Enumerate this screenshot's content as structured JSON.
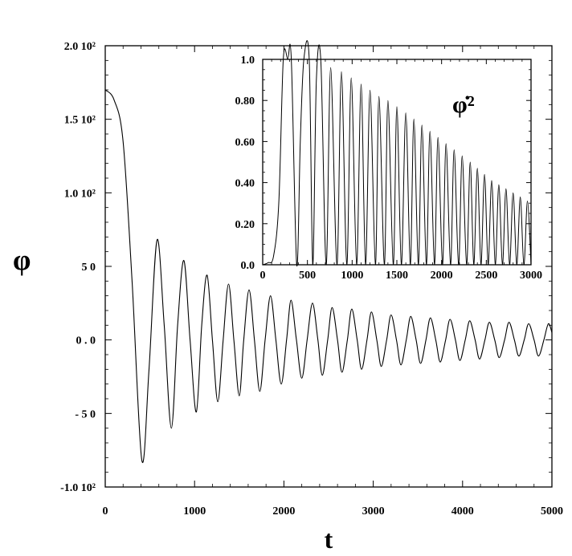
{
  "chart_data": [
    {
      "type": "line",
      "title": "",
      "xlabel": "t",
      "ylabel": "φ",
      "xlim": [
        0,
        5000
      ],
      "ylim": [
        -100,
        200
      ],
      "grid": false,
      "x_ticks": [
        {
          "value": 0,
          "label": "0"
        },
        {
          "value": 1000,
          "label": "1000"
        },
        {
          "value": 2000,
          "label": "2000"
        },
        {
          "value": 3000,
          "label": "3000"
        },
        {
          "value": 4000,
          "label": "4000"
        },
        {
          "value": 5000,
          "label": "5000"
        }
      ],
      "y_ticks": [
        {
          "value": 200,
          "label": "2.0  10²"
        },
        {
          "value": 150,
          "label": "1.5  10²"
        },
        {
          "value": 100,
          "label": "1.0  10²"
        },
        {
          "value": 50,
          "label": "5 0"
        },
        {
          "value": 0,
          "label": "0 . 0"
        },
        {
          "value": -50,
          "label": "- 5 0"
        },
        {
          "value": -100,
          "label": "-1.0  10²"
        }
      ],
      "series": [
        {
          "color": "#000000",
          "points": [
            [
              0,
              170
            ],
            [
              100,
              163
            ],
            [
              200,
              135
            ],
            [
              300,
              40
            ],
            [
              410,
              -82
            ],
            [
              490,
              -20
            ],
            [
              580,
              68
            ],
            [
              660,
              10
            ],
            [
              740,
              -60
            ],
            [
              810,
              10
            ],
            [
              880,
              54
            ],
            [
              950,
              0
            ],
            [
              1020,
              -49
            ],
            [
              1080,
              10
            ],
            [
              1140,
              44
            ],
            [
              1200,
              0
            ],
            [
              1260,
              -42
            ],
            [
              1320,
              0
            ],
            [
              1380,
              38
            ],
            [
              1440,
              0
            ],
            [
              1500,
              -38
            ],
            [
              1550,
              0
            ],
            [
              1610,
              34
            ],
            [
              1670,
              0
            ],
            [
              1730,
              -35
            ],
            [
              1790,
              0
            ],
            [
              1850,
              30
            ],
            [
              1910,
              0
            ],
            [
              1970,
              -30
            ],
            [
              2030,
              0
            ],
            [
              2080,
              27
            ],
            [
              2140,
              0
            ],
            [
              2200,
              -26
            ],
            [
              2260,
              0
            ],
            [
              2320,
              25
            ],
            [
              2380,
              0
            ],
            [
              2430,
              -24
            ],
            [
              2490,
              0
            ],
            [
              2540,
              22
            ],
            [
              2600,
              0
            ],
            [
              2650,
              -22
            ],
            [
              2710,
              0
            ],
            [
              2760,
              21
            ],
            [
              2820,
              0
            ],
            [
              2870,
              -20
            ],
            [
              2930,
              0
            ],
            [
              2980,
              19
            ],
            [
              3040,
              0
            ],
            [
              3090,
              -18
            ],
            [
              3150,
              0
            ],
            [
              3200,
              17
            ],
            [
              3260,
              0
            ],
            [
              3310,
              -17
            ],
            [
              3370,
              0
            ],
            [
              3420,
              16
            ],
            [
              3480,
              0
            ],
            [
              3530,
              -16
            ],
            [
              3590,
              0
            ],
            [
              3640,
              15
            ],
            [
              3700,
              0
            ],
            [
              3750,
              -15
            ],
            [
              3810,
              0
            ],
            [
              3860,
              14
            ],
            [
              3920,
              0
            ],
            [
              3970,
              -14
            ],
            [
              4030,
              0
            ],
            [
              4080,
              13
            ],
            [
              4140,
              0
            ],
            [
              4190,
              -13
            ],
            [
              4250,
              0
            ],
            [
              4300,
              12
            ],
            [
              4360,
              0
            ],
            [
              4410,
              -12
            ],
            [
              4470,
              0
            ],
            [
              4520,
              12
            ],
            [
              4580,
              0
            ],
            [
              4630,
              -11
            ],
            [
              4690,
              0
            ],
            [
              4740,
              11
            ],
            [
              4800,
              0
            ],
            [
              4850,
              -11
            ],
            [
              4910,
              0
            ],
            [
              4960,
              11
            ],
            [
              5000,
              5
            ]
          ]
        }
      ]
    },
    {
      "type": "line",
      "title": "",
      "annotation": "φ̇²",
      "xlabel": "",
      "ylabel": "",
      "xlim": [
        0,
        3000
      ],
      "ylim": [
        0,
        1.0
      ],
      "grid": false,
      "x_ticks": [
        {
          "value": 0,
          "label": "0"
        },
        {
          "value": 500,
          "label": "500"
        },
        {
          "value": 1000,
          "label": "1000"
        },
        {
          "value": 1500,
          "label": "1500"
        },
        {
          "value": 2000,
          "label": "2000"
        },
        {
          "value": 2500,
          "label": "2500"
        },
        {
          "value": 3000,
          "label": "3000"
        }
      ],
      "y_ticks": [
        {
          "value": 1.0,
          "label": "1.0"
        },
        {
          "value": 0.8,
          "label": "0.80"
        },
        {
          "value": 0.6,
          "label": "0.60"
        },
        {
          "value": 0.4,
          "label": "0.40"
        },
        {
          "value": 0.2,
          "label": "0.20"
        },
        {
          "value": 0.0,
          "label": "0.0"
        }
      ],
      "series": [
        {
          "color": "#000000",
          "points": [
            [
              0,
              0.0
            ],
            [
              60,
              0.01
            ],
            [
              120,
              0.04
            ],
            [
              180,
              0.3
            ],
            [
              230,
              1.0
            ],
            [
              280,
              1.0
            ],
            [
              320,
              1.0
            ],
            [
              380,
              0.0
            ],
            [
              420,
              0.6
            ],
            [
              460,
              1.0
            ],
            [
              520,
              1.0
            ],
            [
              560,
              0.0
            ],
            [
              600,
              0.9
            ],
            [
              650,
              0.99
            ],
            [
              710,
              0.0
            ],
            [
              760,
              0.96
            ],
            [
              830,
              0.0
            ],
            [
              880,
              0.94
            ],
            [
              940,
              0.0
            ],
            [
              990,
              0.91
            ],
            [
              1050,
              0.0
            ],
            [
              1100,
              0.88
            ],
            [
              1150,
              0.0
            ],
            [
              1200,
              0.85
            ],
            [
              1260,
              0.0
            ],
            [
              1300,
              0.82
            ],
            [
              1360,
              0.0
            ],
            [
              1400,
              0.8
            ],
            [
              1460,
              0.0
            ],
            [
              1500,
              0.77
            ],
            [
              1550,
              0.0
            ],
            [
              1600,
              0.74
            ],
            [
              1650,
              0.0
            ],
            [
              1690,
              0.71
            ],
            [
              1740,
              0.0
            ],
            [
              1780,
              0.68
            ],
            [
              1830,
              0.0
            ],
            [
              1870,
              0.65
            ],
            [
              1920,
              0.0
            ],
            [
              1960,
              0.62
            ],
            [
              2010,
              0.0
            ],
            [
              2050,
              0.59
            ],
            [
              2100,
              0.0
            ],
            [
              2140,
              0.56
            ],
            [
              2190,
              0.0
            ],
            [
              2230,
              0.53
            ],
            [
              2280,
              0.0
            ],
            [
              2320,
              0.5
            ],
            [
              2360,
              0.0
            ],
            [
              2400,
              0.47
            ],
            [
              2440,
              0.0
            ],
            [
              2480,
              0.44
            ],
            [
              2520,
              0.0
            ],
            [
              2560,
              0.41
            ],
            [
              2600,
              0.0
            ],
            [
              2640,
              0.39
            ],
            [
              2680,
              0.0
            ],
            [
              2720,
              0.37
            ],
            [
              2760,
              0.0
            ],
            [
              2800,
              0.35
            ],
            [
              2840,
              0.0
            ],
            [
              2880,
              0.33
            ],
            [
              2920,
              0.0
            ],
            [
              2960,
              0.31
            ],
            [
              3000,
              0.0
            ]
          ]
        }
      ]
    }
  ]
}
